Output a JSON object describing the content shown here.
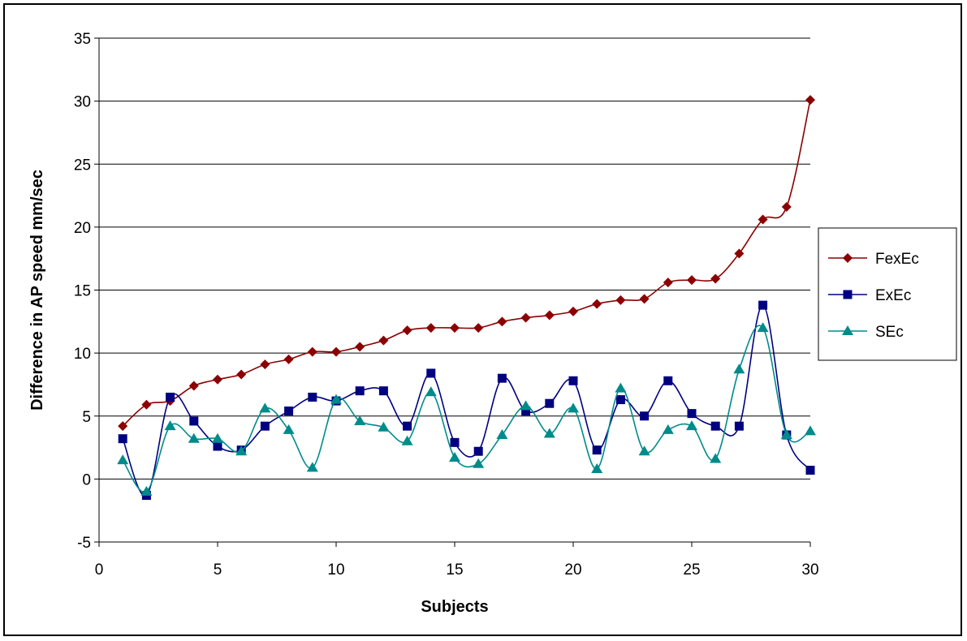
{
  "chart_data": {
    "type": "line",
    "smooth": true,
    "xlabel": "Subjects",
    "ylabel": "Difference in AP speed mm/sec",
    "xlim": [
      0,
      30
    ],
    "ylim": [
      -5,
      35
    ],
    "xticks": [
      0,
      5,
      10,
      15,
      20,
      25,
      30
    ],
    "yticks": [
      -5,
      0,
      5,
      10,
      15,
      20,
      25,
      30,
      35
    ],
    "grid": "horizontal",
    "legend_position": "right",
    "x": [
      1,
      2,
      3,
      4,
      5,
      6,
      7,
      8,
      9,
      10,
      11,
      12,
      13,
      14,
      15,
      16,
      17,
      18,
      19,
      20,
      21,
      22,
      23,
      24,
      25,
      26,
      27,
      28,
      29,
      30
    ],
    "series": [
      {
        "name": "FexEc",
        "color": "#8B0000",
        "marker": "diamond",
        "values": [
          4.2,
          5.9,
          6.2,
          7.4,
          7.9,
          8.3,
          9.1,
          9.5,
          10.1,
          10.1,
          10.5,
          11.0,
          11.8,
          12.0,
          12.0,
          12.0,
          12.5,
          12.8,
          13.0,
          13.3,
          13.9,
          14.2,
          14.3,
          15.6,
          15.8,
          15.9,
          17.9,
          20.6,
          21.6,
          30.1
        ]
      },
      {
        "name": "ExEc",
        "color": "#000080",
        "marker": "square",
        "values": [
          3.2,
          -1.3,
          6.5,
          4.6,
          2.6,
          2.3,
          4.2,
          5.4,
          6.5,
          6.2,
          7.0,
          7.0,
          4.2,
          8.4,
          2.9,
          2.2,
          8.0,
          5.4,
          6.0,
          7.8,
          2.3,
          6.3,
          5.0,
          7.8,
          5.2,
          4.2,
          4.2,
          13.8,
          3.5,
          0.7
        ]
      },
      {
        "name": "SEc",
        "color": "#008B8B",
        "marker": "triangle",
        "values": [
          1.5,
          -1.0,
          4.2,
          3.2,
          3.2,
          2.2,
          5.6,
          3.9,
          0.9,
          6.3,
          4.6,
          4.1,
          3.0,
          6.9,
          1.7,
          1.2,
          3.5,
          5.8,
          3.6,
          5.6,
          0.8,
          7.2,
          2.2,
          3.9,
          4.2,
          1.6,
          8.7,
          12.0,
          3.5,
          3.8
        ]
      }
    ]
  }
}
